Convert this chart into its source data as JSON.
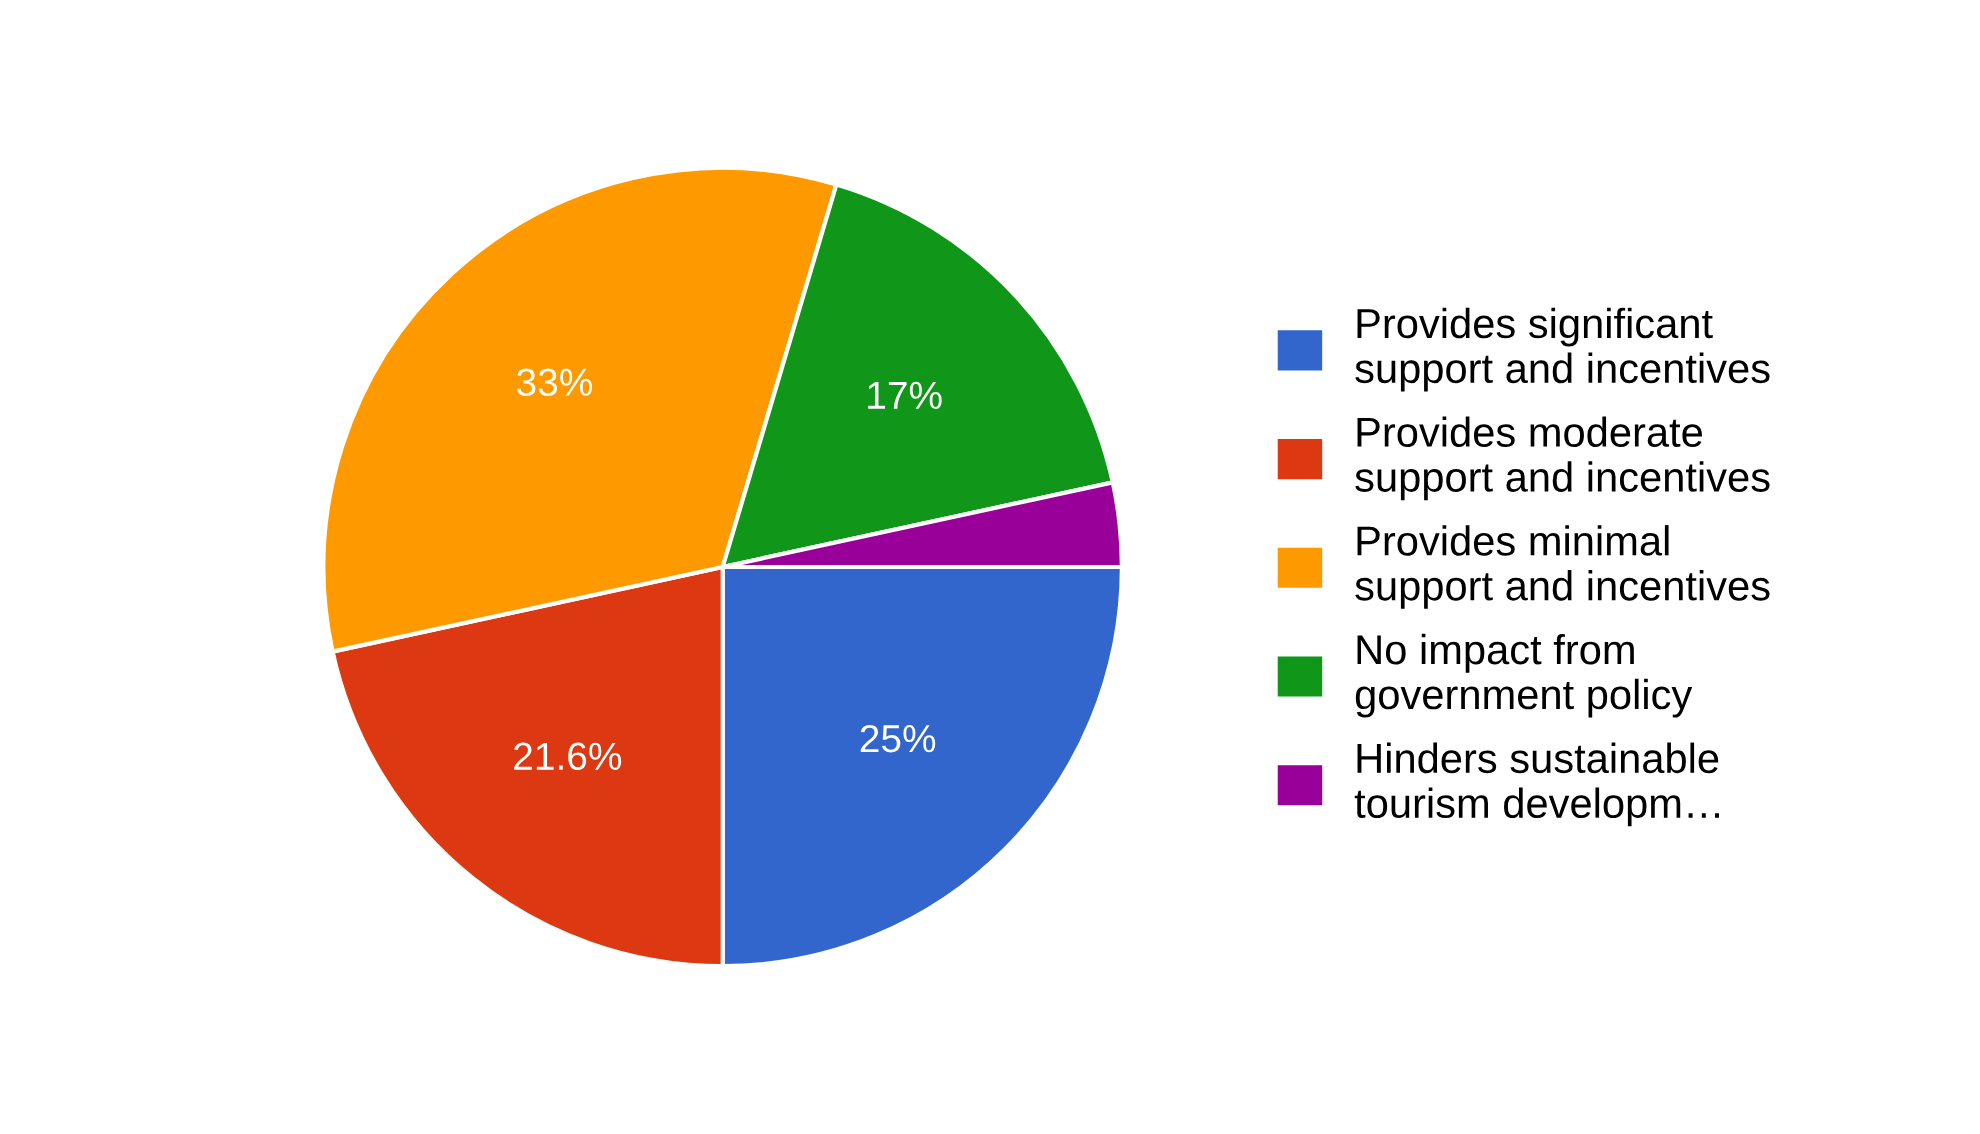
{
  "chart_data": {
    "type": "pie",
    "categories": [
      "Provides significant support and incentives",
      "Provides moderate support and incentives",
      "Provides minimal support and incentives",
      "No impact from government policy",
      "Hinders sustainable tourism developm…"
    ],
    "values": [
      25,
      21.6,
      33,
      17,
      3.4
    ],
    "value_labels": [
      "25%",
      "21.6%",
      "33%",
      "17%",
      null
    ],
    "colors": [
      "#3366cc",
      "#dc3912",
      "#ff9900",
      "#109618",
      "#990099"
    ],
    "legend": "right"
  }
}
